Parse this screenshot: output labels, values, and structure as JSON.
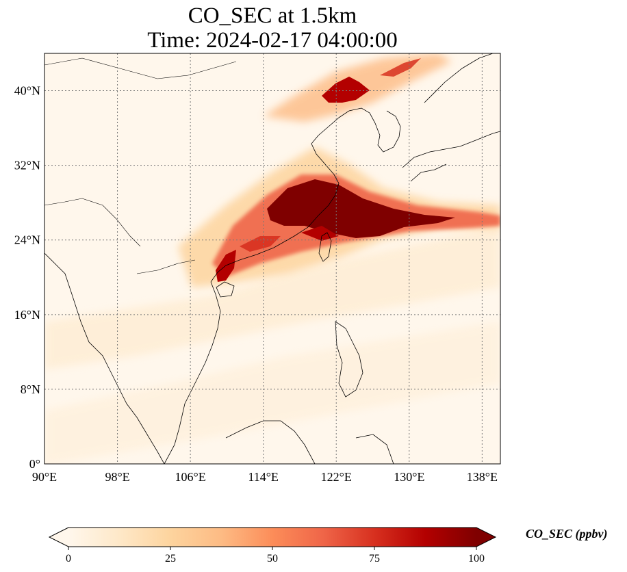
{
  "title": {
    "line1": "CO_SEC at 1.5km",
    "line2": "Time: 2024-02-17 04:00:00"
  },
  "map": {
    "projection": "PlateCarree",
    "lon_range": [
      90,
      140
    ],
    "lat_range": [
      0,
      44
    ],
    "gridlines": "dotted gray",
    "x_ticks": [
      "90°E",
      "98°E",
      "106°E",
      "114°E",
      "122°E",
      "130°E",
      "138°E"
    ],
    "y_ticks": [
      "0°",
      "8°N",
      "16°N",
      "24°N",
      "32°N",
      "40°N"
    ],
    "field": "CO_SEC concentration",
    "colormap": "OrRd"
  },
  "colorbar": {
    "label": "CO_SEC (ppbv)",
    "ticks": [
      "0",
      "25",
      "50",
      "75",
      "100"
    ],
    "range": [
      0,
      100
    ],
    "extend": "both",
    "colors": [
      "#fff7ec",
      "#fee8c8",
      "#fdd49e",
      "#fdbb84",
      "#fc8d59",
      "#ef6548",
      "#d7301f",
      "#b30000",
      "#7f0000"
    ]
  }
}
